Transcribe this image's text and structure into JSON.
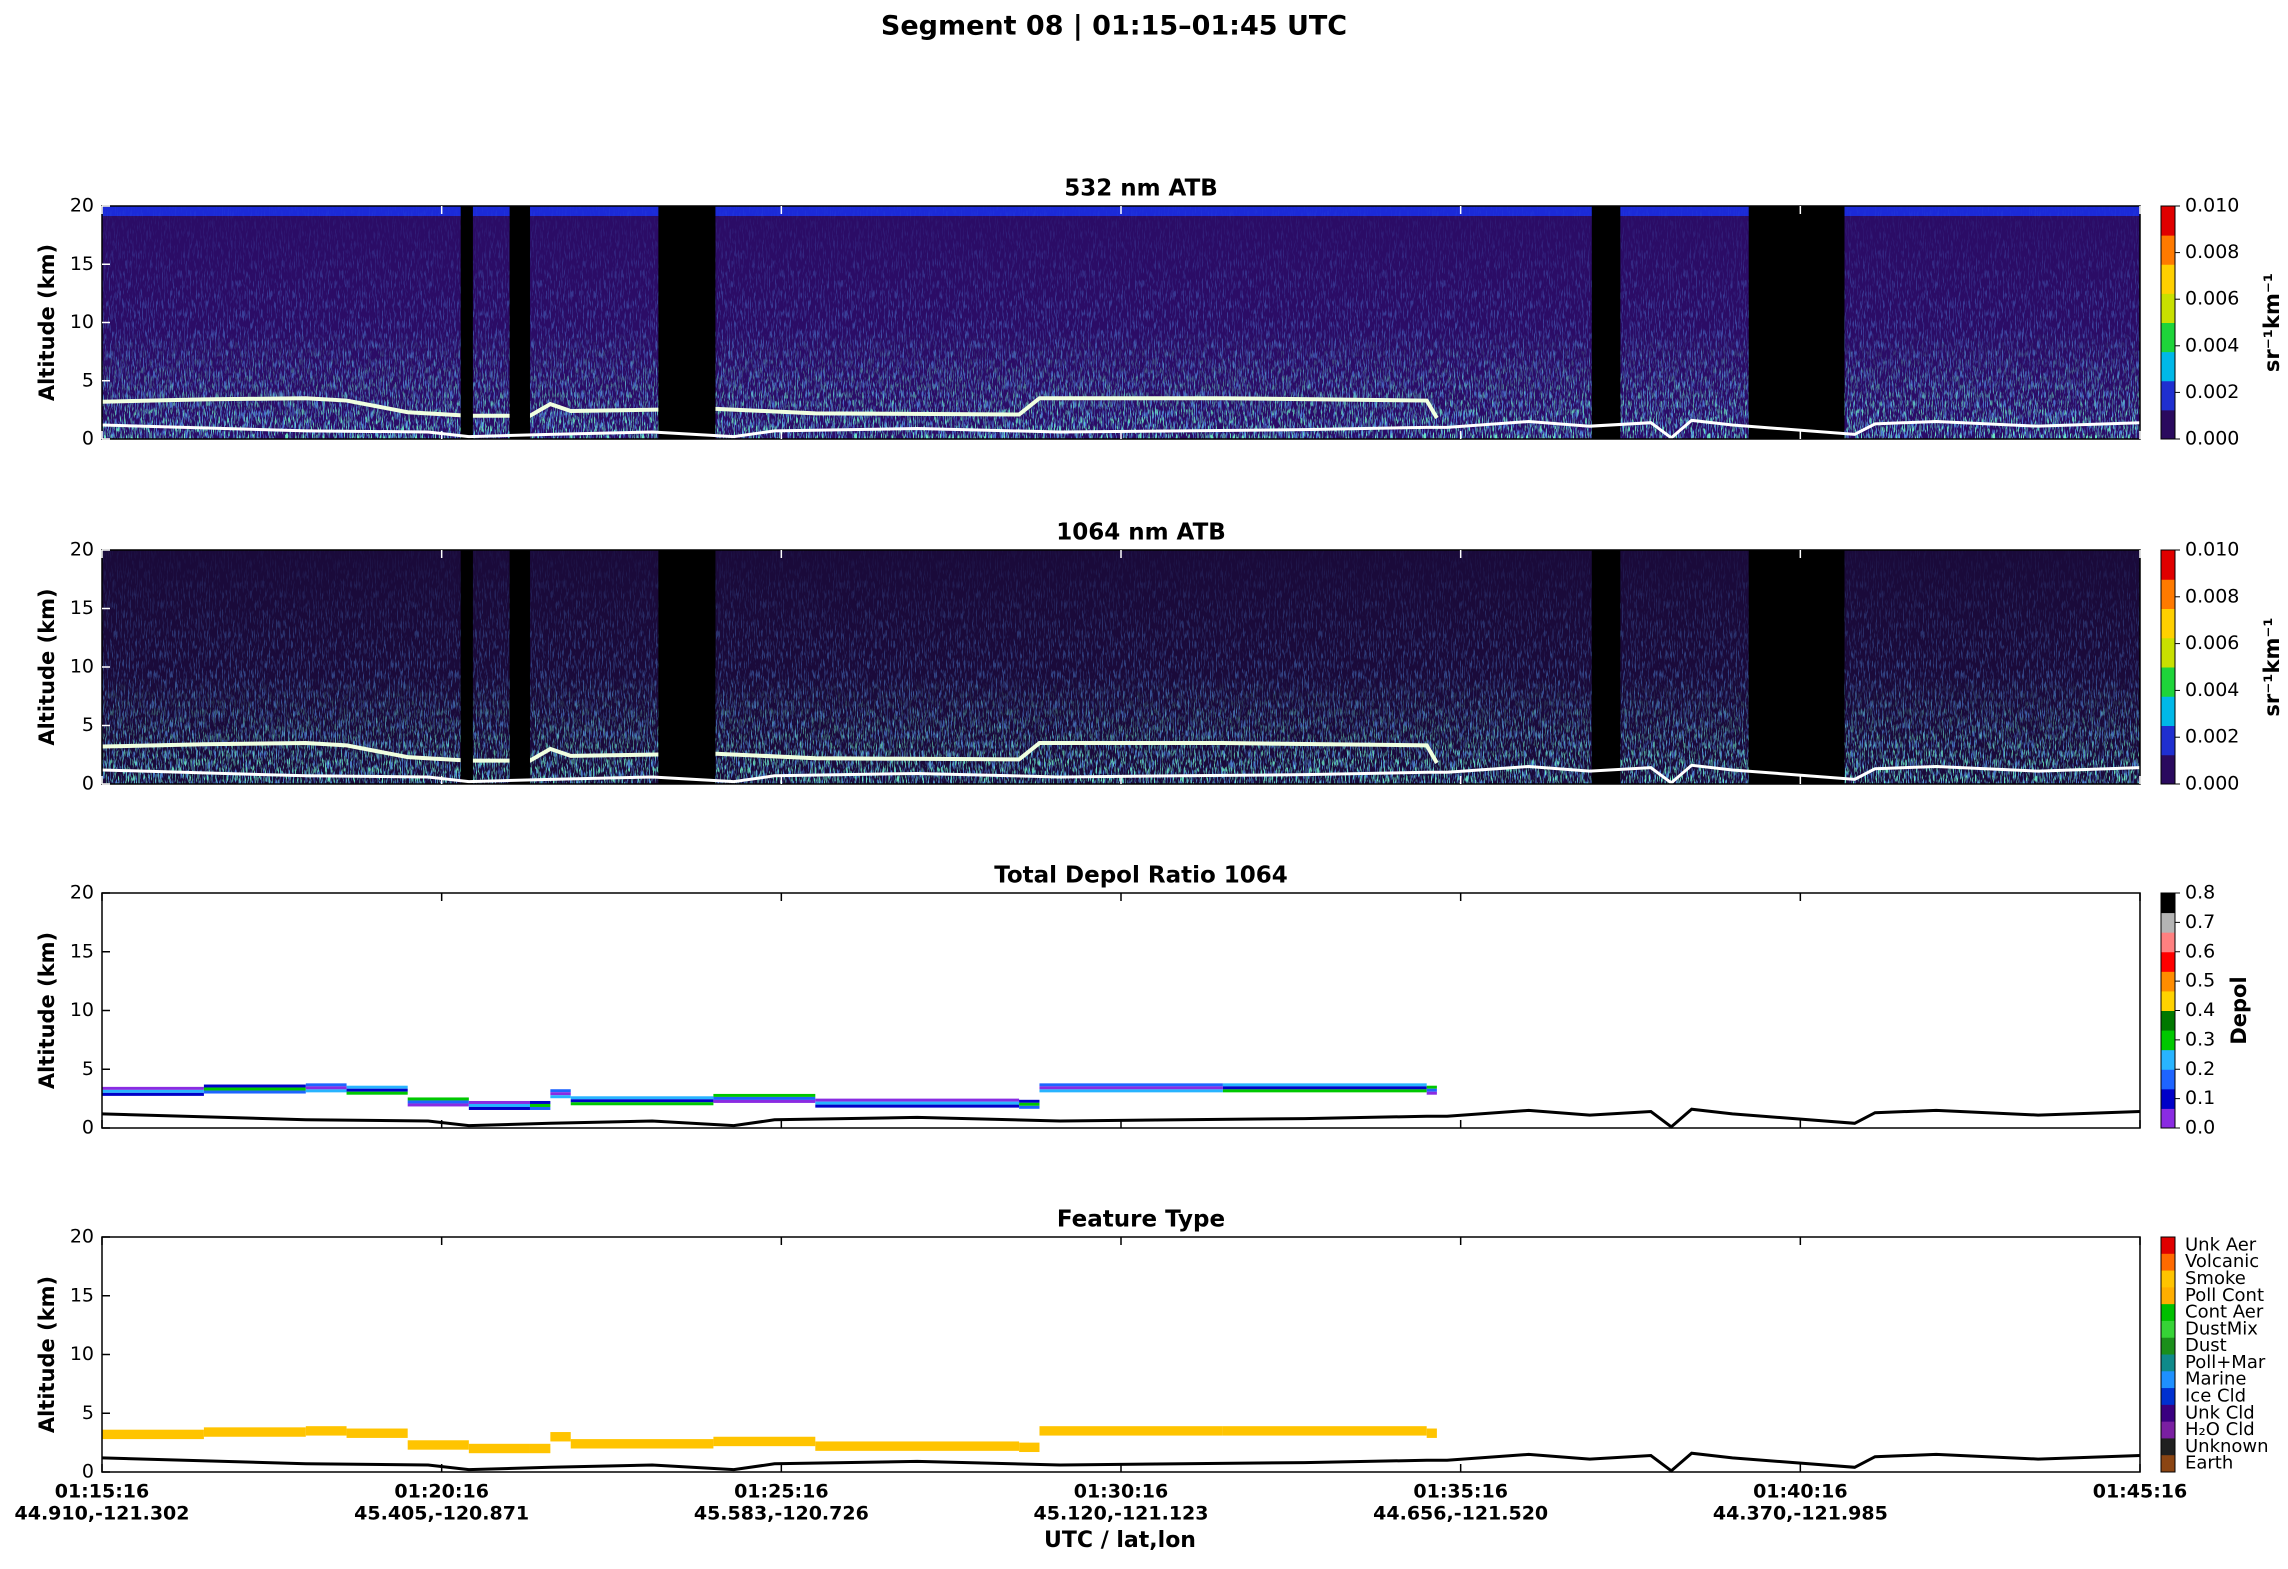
{
  "title": "Segment 08  |  01:15–01:45 UTC",
  "x_label": "UTC / lat,lon",
  "chart_data": [
    {
      "type": "heatmap",
      "title": "532 nm ATB",
      "y_label": "Altitude (km)",
      "ylim": [
        0,
        20
      ],
      "yticks": [
        0,
        5,
        10,
        15,
        20
      ],
      "colorbar": {
        "label": "sr⁻¹km⁻¹",
        "lim": [
          0,
          0.01
        ],
        "ticks": [
          {
            "value": 0,
            "label": "0.000"
          },
          {
            "value": 0.002,
            "label": "0.002"
          },
          {
            "value": 0.004,
            "label": "0.004"
          },
          {
            "value": 0.006,
            "label": "0.006"
          },
          {
            "value": 0.008,
            "label": "0.008"
          },
          {
            "value": 0.01,
            "label": "0.010"
          }
        ],
        "colors": [
          "#2a0a5e",
          "#1f2fd0",
          "#00b8e8",
          "#1ed43a",
          "#c8e000",
          "#ffd000",
          "#ff7a00",
          "#e00000"
        ]
      }
    },
    {
      "type": "heatmap",
      "title": "1064 nm ATB",
      "y_label": "Altitude (km)",
      "ylim": [
        0,
        20
      ],
      "yticks": [
        0,
        5,
        10,
        15,
        20
      ],
      "colorbar": {
        "label": "sr⁻¹km⁻¹",
        "lim": [
          0,
          0.01
        ],
        "ticks": [
          {
            "value": 0,
            "label": "0.000"
          },
          {
            "value": 0.002,
            "label": "0.002"
          },
          {
            "value": 0.004,
            "label": "0.004"
          },
          {
            "value": 0.006,
            "label": "0.006"
          },
          {
            "value": 0.008,
            "label": "0.008"
          },
          {
            "value": 0.01,
            "label": "0.010"
          }
        ],
        "colors": [
          "#2a0a5e",
          "#1f2fd0",
          "#00b8e8",
          "#1ed43a",
          "#c8e000",
          "#ffd000",
          "#ff7a00",
          "#e00000"
        ]
      }
    },
    {
      "type": "heatmap",
      "title": "Total Depol Ratio 1064",
      "y_label": "Altitude (km)",
      "ylim": [
        0,
        20
      ],
      "yticks": [
        0,
        5,
        10,
        15,
        20
      ],
      "colorbar": {
        "label": "Depol",
        "lim": [
          0,
          0.8
        ],
        "ticks": [
          {
            "value": 0,
            "label": "0.0"
          },
          0.1,
          0.2,
          0.3,
          0.4,
          0.5,
          0.6,
          0.7,
          0.8
        ],
        "colors": [
          "#8a2be2",
          "#0000c8",
          "#1e64ff",
          "#28b4ff",
          "#00c800",
          "#007800",
          "#ffd200",
          "#ff8c00",
          "#ff0000",
          "#ff8080",
          "#b4b4b4",
          "#000000"
        ]
      }
    },
    {
      "type": "heatmap",
      "title": "Feature Type",
      "y_label": "Altitude (km)",
      "ylim": [
        0,
        20
      ],
      "yticks": [
        0,
        5,
        10,
        15,
        20
      ],
      "categories": [
        "01:15:16",
        "01:20:16",
        "01:25:16",
        "01:30:16",
        "01:35:16",
        "01:40:16",
        "01:45:16"
      ],
      "lat_lon": [
        "44.910,-121.302",
        "45.405,-120.871",
        "45.583,-120.726",
        "45.120,-121.123",
        "44.656,-121.520",
        "44.370,-121.985",
        null
      ],
      "classes": [
        "Unk Aer",
        "Volcanic",
        "Smoke",
        "Poll Cont",
        "Cont Aer",
        "DustMix",
        "Dust",
        "Poll+Mar",
        "Marine",
        "Ice Cld",
        "Unk Cld",
        "H₂O Cld",
        "Unknown",
        "Earth"
      ],
      "colors": [
        "#e00000",
        "#ff6a00",
        "#ffc400",
        "#ffae00",
        "#00c000",
        "#36d336",
        "#1b8f1b",
        "#0f8a8a",
        "#1e90ff",
        "#0030d0",
        "#3a0080",
        "#7a1fa2",
        "#202020",
        "#8b4513"
      ]
    }
  ]
}
